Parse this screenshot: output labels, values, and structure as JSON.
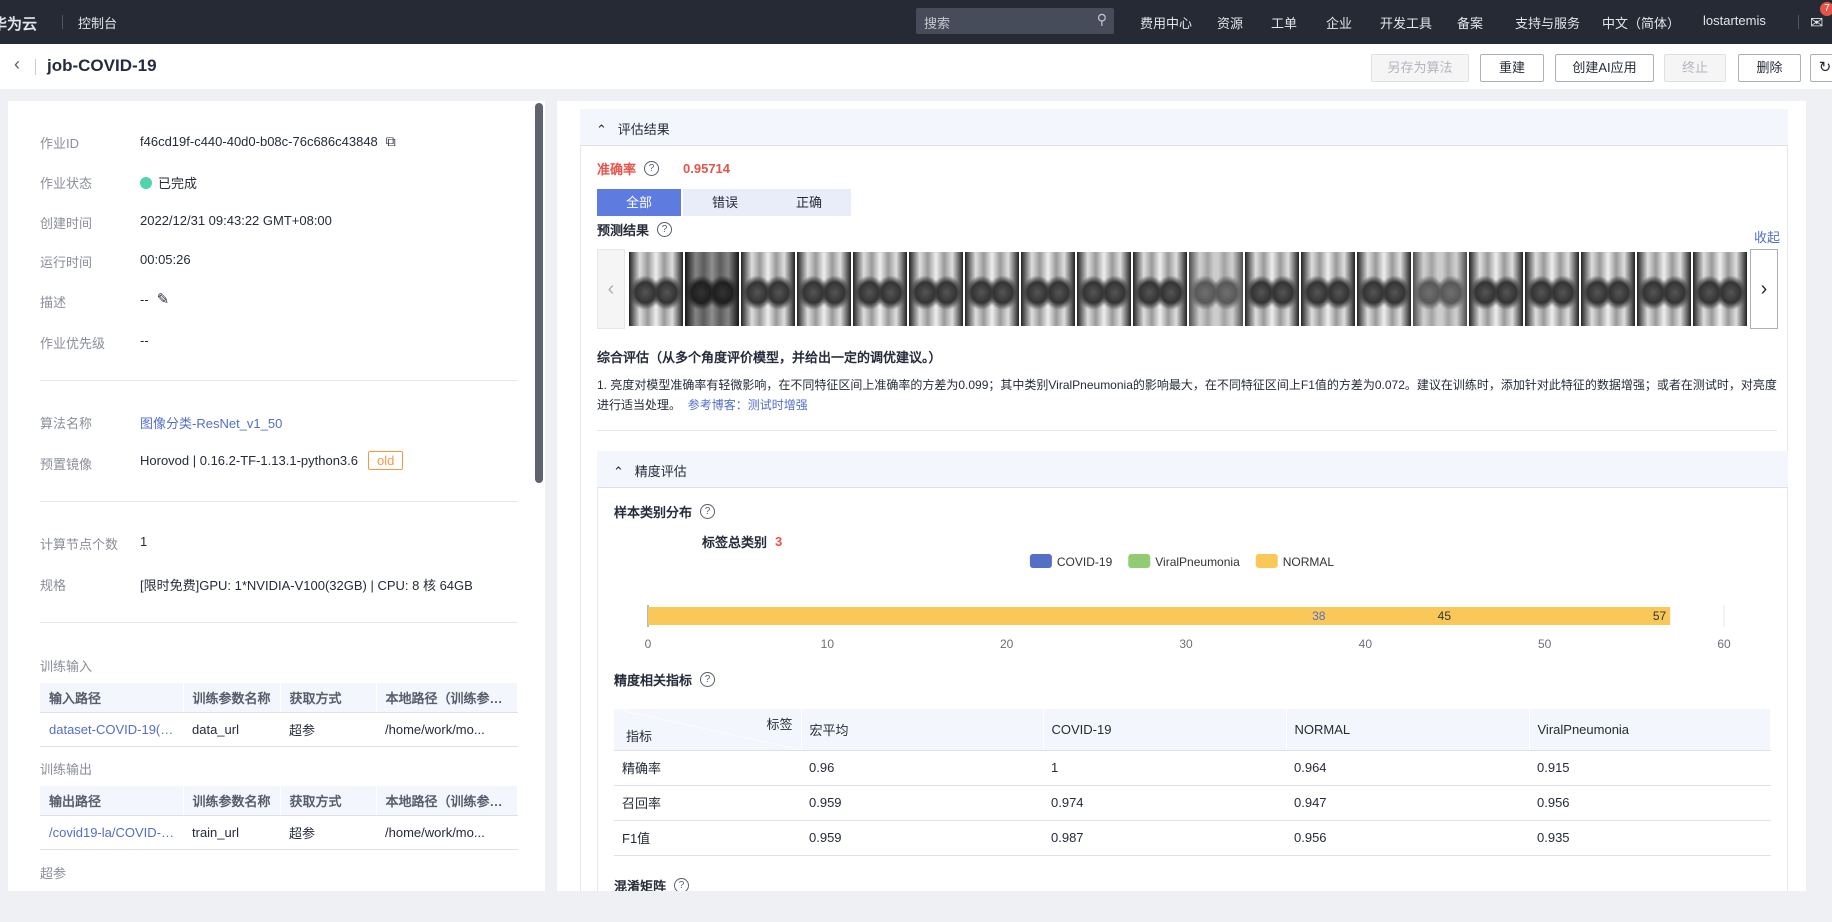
{
  "topbar": {
    "logo": "华为云",
    "console": "控制台",
    "search_placeholder": "搜索",
    "nav": [
      "费用中心",
      "资源",
      "工单",
      "企业",
      "开发工具",
      "备案",
      "支持与服务",
      "中文（简体）",
      "lostartemis"
    ],
    "mail_badge": "7"
  },
  "header": {
    "title": "job-COVID-19",
    "buttons": {
      "save_algo": "另存为算法",
      "rebuild": "重建",
      "create_ai": "创建AI应用",
      "stop": "终止",
      "delete": "删除"
    }
  },
  "info": {
    "job_id_label": "作业ID",
    "job_id": "f46cd19f-c440-40d0-b08c-76c686c43848",
    "status_label": "作业状态",
    "status": "已完成",
    "created_label": "创建时间",
    "created": "2022/12/31 09:43:22 GMT+08:00",
    "runtime_label": "运行时间",
    "runtime": "00:05:26",
    "desc_label": "描述",
    "desc": "--",
    "priority_label": "作业优先级",
    "priority": "--",
    "algo_label": "算法名称",
    "algo": "图像分类-ResNet_v1_50",
    "image_label": "预置镜像",
    "image": "Horovod | 0.16.2-TF-1.13.1-python3.6",
    "image_tag": "old",
    "nodes_label": "计算节点个数",
    "nodes": "1",
    "spec_label": "规格",
    "spec": "[限时免费]GPU: 1*NVIDIA-V100(32GB) | CPU: 8 核 64GB",
    "input_title": "训练输入",
    "input_headers": [
      "输入路径",
      "训练参数名称",
      "获取方式",
      "本地路径（训练参数..."
    ],
    "input_row": [
      "dataset-COVID-19(V...",
      "data_url",
      "超参",
      "/home/work/mo..."
    ],
    "output_title": "训练输出",
    "output_headers": [
      "输出路径",
      "训练参数名称",
      "获取方式",
      "本地路径（训练参数..."
    ],
    "output_row": [
      "/covid19-la/COVID-1...",
      "train_url",
      "超参",
      "/home/work/mo..."
    ],
    "hyper_title": "超参"
  },
  "eval": {
    "title": "评估结果",
    "accuracy_label": "准确率",
    "accuracy": "0.95714",
    "tabs": [
      "全部",
      "错误",
      "正确"
    ],
    "pred_label": "预测结果",
    "collapse": "收起",
    "summary_title": "综合评估（从多个角度评价模型，并给出一定的调优建议。）",
    "summary_text": "1. 亮度对模型准确率有轻微影响，在不同特征区间上准确率的方差为0.099；其中类别ViralPneumonia的影响最大，在不同特征区间上F1值的方差为0.072。建议在训练时，添加针对此特征的数据增强；或者在测试时，对亮度进行适当处理。",
    "ref_label": "参考博客：",
    "ref_link": "测试时增强",
    "precision_title": "精度评估",
    "dist_title": "样本类别分布",
    "total_label": "标签总类别",
    "total": "3",
    "metrics_title": "精度相关指标",
    "confusion_title": "混淆矩阵",
    "table": {
      "corner_top": "标签",
      "corner_bottom": "指标",
      "headers": [
        "宏平均",
        "COVID-19",
        "NORMAL",
        "ViralPneumonia"
      ],
      "rows": [
        {
          "name": "精确率",
          "values": [
            "0.96",
            "1",
            "0.964",
            "0.915"
          ]
        },
        {
          "name": "召回率",
          "values": [
            "0.959",
            "0.974",
            "0.947",
            "0.956"
          ]
        },
        {
          "name": "F1值",
          "values": [
            "0.959",
            "0.987",
            "0.956",
            "0.935"
          ]
        }
      ]
    }
  },
  "chart_data": {
    "type": "bar",
    "orientation": "horizontal",
    "overlay": true,
    "xlim": [
      0,
      60
    ],
    "ticks": [
      "0",
      "10",
      "20",
      "30",
      "40",
      "50",
      "60"
    ],
    "legend_position": "top",
    "series": [
      {
        "name": "COVID-19",
        "value": 38,
        "color": "#5470c6"
      },
      {
        "name": "ViralPneumonia",
        "value": 45,
        "color": "#91cc75"
      },
      {
        "name": "NORMAL",
        "value": 57,
        "color": "#fac858"
      }
    ]
  }
}
